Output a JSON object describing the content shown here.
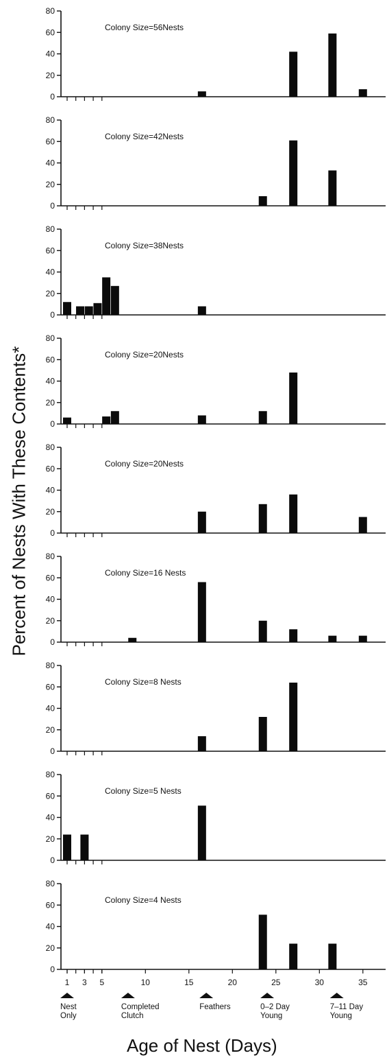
{
  "chart_data": {
    "type": "bar",
    "ylabel": "Percent of Nests With These Contents*",
    "xlabel": "Age of Nest (Days)",
    "xlim": [
      0,
      37
    ],
    "ylim": [
      0,
      80
    ],
    "y_ticks": [
      0,
      20,
      40,
      60,
      80
    ],
    "x_ticks_labeled": [
      1,
      3,
      5,
      10,
      15,
      20,
      25,
      30,
      35
    ],
    "x_ticks_minor": [
      1,
      2,
      3,
      4,
      5
    ],
    "markers": [
      {
        "x": 1,
        "label": [
          "Nest",
          "Only"
        ]
      },
      {
        "x": 8,
        "label": [
          "Completed",
          "Clutch"
        ]
      },
      {
        "x": 17,
        "label": [
          "Feathers"
        ]
      },
      {
        "x": 24,
        "label": [
          "0–2 Day",
          "Young"
        ]
      },
      {
        "x": 32,
        "label": [
          "7–11 Day",
          "Young"
        ]
      }
    ],
    "panels": [
      {
        "title": "Colony Size=56Nests",
        "bars": [
          {
            "x": 16.5,
            "value": 5
          },
          {
            "x": 27,
            "value": 42
          },
          {
            "x": 31.5,
            "value": 59
          },
          {
            "x": 35,
            "value": 7
          }
        ]
      },
      {
        "title": "Colony Size=42Nests",
        "bars": [
          {
            "x": 23.5,
            "value": 9
          },
          {
            "x": 27,
            "value": 61
          },
          {
            "x": 31.5,
            "value": 33
          }
        ]
      },
      {
        "title": "Colony Size=38Nests",
        "bars": [
          {
            "x": 1,
            "value": 12
          },
          {
            "x": 2.5,
            "value": 8
          },
          {
            "x": 3.5,
            "value": 8
          },
          {
            "x": 4.5,
            "value": 11
          },
          {
            "x": 5.5,
            "value": 35
          },
          {
            "x": 6.5,
            "value": 27
          },
          {
            "x": 16.5,
            "value": 8
          }
        ]
      },
      {
        "title": "Colony Size=20Nests",
        "bars": [
          {
            "x": 1,
            "value": 6
          },
          {
            "x": 5.5,
            "value": 7
          },
          {
            "x": 6.5,
            "value": 12
          },
          {
            "x": 16.5,
            "value": 8
          },
          {
            "x": 23.5,
            "value": 12
          },
          {
            "x": 27,
            "value": 48
          }
        ]
      },
      {
        "title": "Colony Size=20Nests",
        "bars": [
          {
            "x": 16.5,
            "value": 20
          },
          {
            "x": 23.5,
            "value": 27
          },
          {
            "x": 27,
            "value": 36
          },
          {
            "x": 35,
            "value": 15
          }
        ]
      },
      {
        "title": "Colony Size=16 Nests",
        "bars": [
          {
            "x": 8.5,
            "value": 4
          },
          {
            "x": 16.5,
            "value": 56
          },
          {
            "x": 23.5,
            "value": 20
          },
          {
            "x": 27,
            "value": 12
          },
          {
            "x": 31.5,
            "value": 6
          },
          {
            "x": 35,
            "value": 6
          }
        ]
      },
      {
        "title": "Colony Size=8 Nests",
        "bars": [
          {
            "x": 16.5,
            "value": 14
          },
          {
            "x": 23.5,
            "value": 32
          },
          {
            "x": 27,
            "value": 64
          }
        ]
      },
      {
        "title": "Colony Size=5 Nests",
        "bars": [
          {
            "x": 1,
            "value": 24
          },
          {
            "x": 3,
            "value": 24
          },
          {
            "x": 16.5,
            "value": 51
          }
        ]
      },
      {
        "title": "Colony Size=4 Nests",
        "bars": [
          {
            "x": 23.5,
            "value": 51
          },
          {
            "x": 27,
            "value": 24
          },
          {
            "x": 31.5,
            "value": 24
          }
        ]
      }
    ]
  }
}
